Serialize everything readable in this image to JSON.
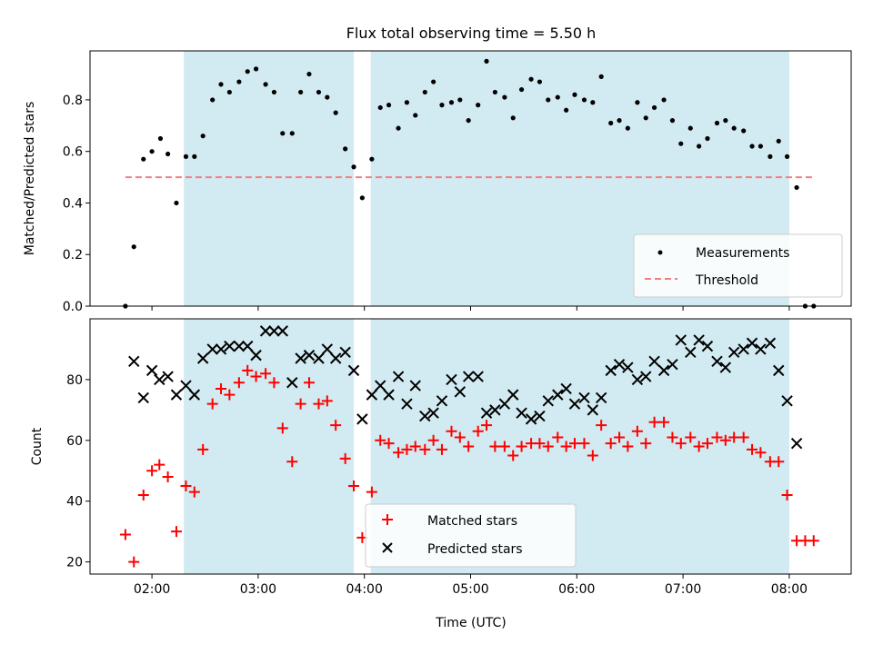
{
  "title": "Flux total observing time = 5.50 h",
  "colors": {
    "shade": "#add8e6",
    "threshold": "#f08080",
    "matched": "#ff0000",
    "predicted": "#000000",
    "measurement": "#000000"
  },
  "chart_data": [
    {
      "type": "scatter",
      "ylabel": "Matched/Predicted stars",
      "xlim": [
        1.417,
        8.583
      ],
      "ylim": [
        0,
        0.99
      ],
      "yticks": [
        0.0,
        0.2,
        0.4,
        0.6,
        0.8
      ],
      "ytick_labels": [
        "0.0",
        "0.2",
        "0.4",
        "0.6",
        "0.8"
      ],
      "shaded_spans": [
        [
          2.3,
          3.9
        ],
        [
          4.06,
          8.0
        ]
      ],
      "threshold": {
        "y": 0.5,
        "x_range": [
          1.75,
          8.25
        ]
      },
      "legend": {
        "placement": "lower right",
        "entries": [
          "Measurements",
          "Threshold"
        ]
      },
      "series": [
        {
          "name": "Measurements",
          "marker": "dot",
          "points": [
            [
              1.75,
              0.0
            ],
            [
              1.83,
              0.23
            ],
            [
              1.92,
              0.57
            ],
            [
              2.0,
              0.6
            ],
            [
              2.08,
              0.65
            ],
            [
              2.15,
              0.59
            ],
            [
              2.23,
              0.4
            ],
            [
              2.32,
              0.58
            ],
            [
              2.4,
              0.58
            ],
            [
              2.48,
              0.66
            ],
            [
              2.57,
              0.8
            ],
            [
              2.65,
              0.86
            ],
            [
              2.73,
              0.83
            ],
            [
              2.82,
              0.87
            ],
            [
              2.9,
              0.91
            ],
            [
              2.98,
              0.92
            ],
            [
              3.07,
              0.86
            ],
            [
              3.15,
              0.83
            ],
            [
              3.23,
              0.67
            ],
            [
              3.32,
              0.67
            ],
            [
              3.4,
              0.83
            ],
            [
              3.48,
              0.9
            ],
            [
              3.57,
              0.83
            ],
            [
              3.65,
              0.81
            ],
            [
              3.73,
              0.75
            ],
            [
              3.82,
              0.61
            ],
            [
              3.9,
              0.54
            ],
            [
              3.98,
              0.42
            ],
            [
              4.07,
              0.57
            ],
            [
              4.15,
              0.77
            ],
            [
              4.23,
              0.78
            ],
            [
              4.32,
              0.69
            ],
            [
              4.4,
              0.79
            ],
            [
              4.48,
              0.74
            ],
            [
              4.57,
              0.83
            ],
            [
              4.65,
              0.87
            ],
            [
              4.73,
              0.78
            ],
            [
              4.82,
              0.79
            ],
            [
              4.9,
              0.8
            ],
            [
              4.98,
              0.72
            ],
            [
              5.07,
              0.78
            ],
            [
              5.15,
              0.95
            ],
            [
              5.23,
              0.83
            ],
            [
              5.32,
              0.81
            ],
            [
              5.4,
              0.73
            ],
            [
              5.48,
              0.84
            ],
            [
              5.57,
              0.88
            ],
            [
              5.65,
              0.87
            ],
            [
              5.73,
              0.8
            ],
            [
              5.82,
              0.81
            ],
            [
              5.9,
              0.76
            ],
            [
              5.98,
              0.82
            ],
            [
              6.07,
              0.8
            ],
            [
              6.15,
              0.79
            ],
            [
              6.23,
              0.89
            ],
            [
              6.32,
              0.71
            ],
            [
              6.4,
              0.72
            ],
            [
              6.48,
              0.69
            ],
            [
              6.57,
              0.79
            ],
            [
              6.65,
              0.73
            ],
            [
              6.73,
              0.77
            ],
            [
              6.82,
              0.8
            ],
            [
              6.9,
              0.72
            ],
            [
              6.98,
              0.63
            ],
            [
              7.07,
              0.69
            ],
            [
              7.15,
              0.62
            ],
            [
              7.23,
              0.65
            ],
            [
              7.32,
              0.71
            ],
            [
              7.4,
              0.72
            ],
            [
              7.48,
              0.69
            ],
            [
              7.57,
              0.68
            ],
            [
              7.65,
              0.62
            ],
            [
              7.73,
              0.62
            ],
            [
              7.82,
              0.58
            ],
            [
              7.9,
              0.64
            ],
            [
              7.98,
              0.58
            ],
            [
              8.07,
              0.46
            ],
            [
              8.15,
              0.0
            ],
            [
              8.23,
              0.0
            ]
          ]
        }
      ]
    },
    {
      "type": "scatter",
      "xlabel": "Time (UTC)",
      "ylabel": "Count",
      "xlim": [
        1.417,
        8.583
      ],
      "ylim": [
        16,
        100
      ],
      "xticks": [
        2,
        3,
        4,
        5,
        6,
        7,
        8
      ],
      "xtick_labels": [
        "02:00",
        "03:00",
        "04:00",
        "05:00",
        "06:00",
        "07:00",
        "08:00"
      ],
      "yticks": [
        20,
        40,
        60,
        80
      ],
      "ytick_labels": [
        "20",
        "40",
        "60",
        "80"
      ],
      "shaded_spans": [
        [
          2.3,
          3.9
        ],
        [
          4.06,
          8.0
        ]
      ],
      "legend": {
        "placement": "lower center",
        "entries": [
          "Matched stars",
          "Predicted stars"
        ]
      },
      "series": [
        {
          "name": "Matched stars",
          "marker": "plus",
          "points": [
            [
              1.75,
              29
            ],
            [
              1.83,
              20
            ],
            [
              1.92,
              42
            ],
            [
              2.0,
              50
            ],
            [
              2.07,
              52
            ],
            [
              2.15,
              48
            ],
            [
              2.23,
              30
            ],
            [
              2.32,
              45
            ],
            [
              2.4,
              43
            ],
            [
              2.48,
              57
            ],
            [
              2.57,
              72
            ],
            [
              2.65,
              77
            ],
            [
              2.73,
              75
            ],
            [
              2.82,
              79
            ],
            [
              2.9,
              83
            ],
            [
              2.98,
              81
            ],
            [
              3.07,
              82
            ],
            [
              3.15,
              79
            ],
            [
              3.23,
              64
            ],
            [
              3.32,
              53
            ],
            [
              3.4,
              72
            ],
            [
              3.48,
              79
            ],
            [
              3.57,
              72
            ],
            [
              3.65,
              73
            ],
            [
              3.73,
              65
            ],
            [
              3.82,
              54
            ],
            [
              3.9,
              45
            ],
            [
              3.98,
              28
            ],
            [
              4.07,
              43
            ],
            [
              4.15,
              60
            ],
            [
              4.23,
              59
            ],
            [
              4.32,
              56
            ],
            [
              4.4,
              57
            ],
            [
              4.48,
              58
            ],
            [
              4.57,
              57
            ],
            [
              4.65,
              60
            ],
            [
              4.73,
              57
            ],
            [
              4.82,
              63
            ],
            [
              4.9,
              61
            ],
            [
              4.98,
              58
            ],
            [
              5.07,
              63
            ],
            [
              5.15,
              65
            ],
            [
              5.23,
              58
            ],
            [
              5.32,
              58
            ],
            [
              5.4,
              55
            ],
            [
              5.48,
              58
            ],
            [
              5.57,
              59
            ],
            [
              5.65,
              59
            ],
            [
              5.73,
              58
            ],
            [
              5.82,
              61
            ],
            [
              5.9,
              58
            ],
            [
              5.98,
              59
            ],
            [
              6.07,
              59
            ],
            [
              6.15,
              55
            ],
            [
              6.23,
              65
            ],
            [
              6.32,
              59
            ],
            [
              6.4,
              61
            ],
            [
              6.48,
              58
            ],
            [
              6.57,
              63
            ],
            [
              6.65,
              59
            ],
            [
              6.73,
              66
            ],
            [
              6.82,
              66
            ],
            [
              6.9,
              61
            ],
            [
              6.98,
              59
            ],
            [
              7.07,
              61
            ],
            [
              7.15,
              58
            ],
            [
              7.23,
              59
            ],
            [
              7.32,
              61
            ],
            [
              7.4,
              60
            ],
            [
              7.48,
              61
            ],
            [
              7.57,
              61
            ],
            [
              7.65,
              57
            ],
            [
              7.73,
              56
            ],
            [
              7.82,
              53
            ],
            [
              7.9,
              53
            ],
            [
              7.98,
              42
            ],
            [
              8.07,
              27
            ],
            [
              8.15,
              27
            ],
            [
              8.23,
              27
            ]
          ]
        },
        {
          "name": "Predicted stars",
          "marker": "x",
          "points": [
            [
              1.83,
              86
            ],
            [
              1.92,
              74
            ],
            [
              2.0,
              83
            ],
            [
              2.07,
              80
            ],
            [
              2.15,
              81
            ],
            [
              2.23,
              75
            ],
            [
              2.32,
              78
            ],
            [
              2.4,
              75
            ],
            [
              2.48,
              87
            ],
            [
              2.57,
              90
            ],
            [
              2.65,
              90
            ],
            [
              2.73,
              91
            ],
            [
              2.82,
              91
            ],
            [
              2.9,
              91
            ],
            [
              2.98,
              88
            ],
            [
              3.07,
              96
            ],
            [
              3.15,
              96
            ],
            [
              3.23,
              96
            ],
            [
              3.32,
              79
            ],
            [
              3.4,
              87
            ],
            [
              3.48,
              88
            ],
            [
              3.57,
              87
            ],
            [
              3.65,
              90
            ],
            [
              3.73,
              87
            ],
            [
              3.82,
              89
            ],
            [
              3.9,
              83
            ],
            [
              3.98,
              67
            ],
            [
              4.07,
              75
            ],
            [
              4.15,
              78
            ],
            [
              4.23,
              75
            ],
            [
              4.32,
              81
            ],
            [
              4.4,
              72
            ],
            [
              4.48,
              78
            ],
            [
              4.57,
              68
            ],
            [
              4.65,
              69
            ],
            [
              4.73,
              73
            ],
            [
              4.82,
              80
            ],
            [
              4.9,
              76
            ],
            [
              4.98,
              81
            ],
            [
              5.07,
              81
            ],
            [
              5.15,
              69
            ],
            [
              5.23,
              70
            ],
            [
              5.32,
              72
            ],
            [
              5.4,
              75
            ],
            [
              5.48,
              69
            ],
            [
              5.57,
              67
            ],
            [
              5.65,
              68
            ],
            [
              5.73,
              73
            ],
            [
              5.82,
              75
            ],
            [
              5.9,
              77
            ],
            [
              5.98,
              72
            ],
            [
              6.07,
              74
            ],
            [
              6.15,
              70
            ],
            [
              6.23,
              74
            ],
            [
              6.32,
              83
            ],
            [
              6.4,
              85
            ],
            [
              6.48,
              84
            ],
            [
              6.57,
              80
            ],
            [
              6.65,
              81
            ],
            [
              6.73,
              86
            ],
            [
              6.82,
              83
            ],
            [
              6.9,
              85
            ],
            [
              6.98,
              93
            ],
            [
              7.07,
              89
            ],
            [
              7.15,
              93
            ],
            [
              7.23,
              91
            ],
            [
              7.32,
              86
            ],
            [
              7.4,
              84
            ],
            [
              7.48,
              89
            ],
            [
              7.57,
              90
            ],
            [
              7.65,
              92
            ],
            [
              7.73,
              90
            ],
            [
              7.82,
              92
            ],
            [
              7.9,
              83
            ],
            [
              7.98,
              73
            ],
            [
              8.07,
              59
            ]
          ]
        }
      ]
    }
  ]
}
